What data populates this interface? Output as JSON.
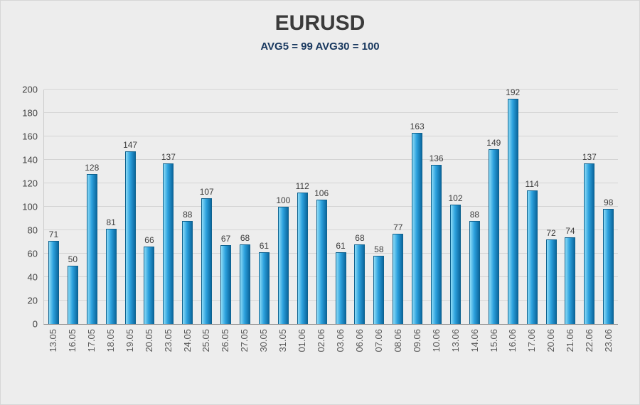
{
  "chart_data": {
    "type": "bar",
    "title": "EURUSD",
    "subtitle": "AVG5 = 99 AVG30 = 100",
    "categories": [
      "13.05",
      "16.05",
      "17.05",
      "18.05",
      "19.05",
      "20.05",
      "23.05",
      "24.05",
      "25.05",
      "26.05",
      "27.05",
      "30.05",
      "31.05",
      "01.06",
      "02.06",
      "03.06",
      "06.06",
      "07.06",
      "08.06",
      "09.06",
      "10.06",
      "13.06",
      "14.06",
      "15.06",
      "16.06",
      "17.06",
      "20.06",
      "21.06",
      "22.06",
      "23.06"
    ],
    "values": [
      71,
      50,
      128,
      81,
      147,
      66,
      137,
      88,
      107,
      67,
      68,
      61,
      100,
      112,
      106,
      61,
      68,
      58,
      77,
      163,
      136,
      102,
      88,
      149,
      192,
      114,
      72,
      74,
      137,
      98
    ],
    "xlabel": "",
    "ylabel": "",
    "ylim": [
      0,
      200
    ],
    "ytick_step": 20,
    "grid": true,
    "legend": "none",
    "colors": {
      "page_bg": "#ededed",
      "title": "#3b3b3b",
      "subtitle": "#17375e",
      "grid": "#d4d4d4",
      "axis": "#909090",
      "value_label": "#3d3d3d",
      "x_label": "#595959",
      "bar_light": "#8edcf7",
      "bar_mid": "#2da2de",
      "bar_dark": "#0b689f",
      "bar_border": "#0e628f"
    }
  }
}
